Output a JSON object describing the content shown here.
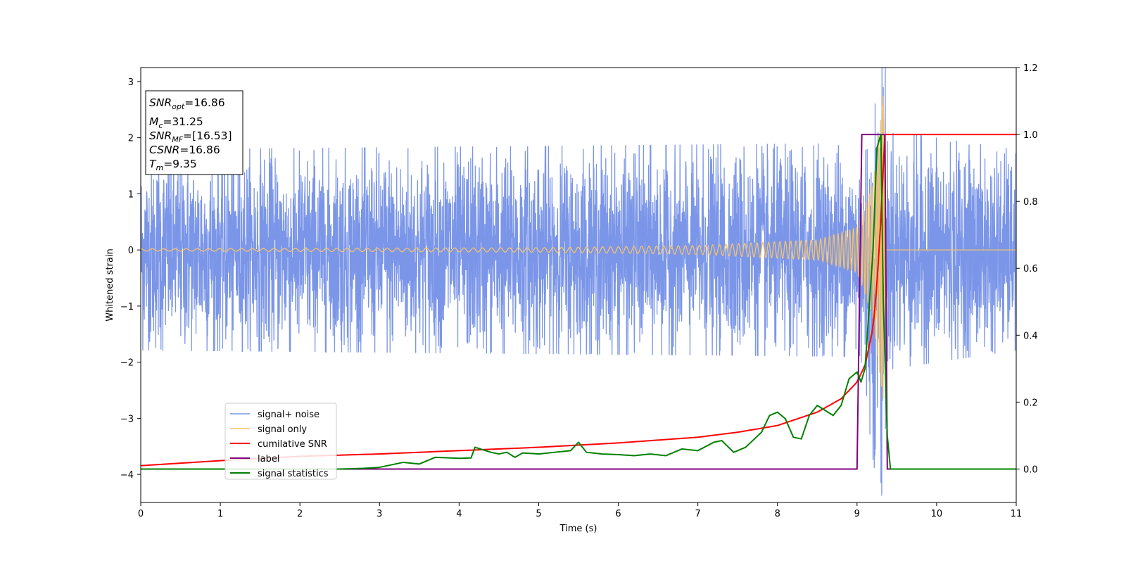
{
  "chart_data": {
    "type": "line",
    "title": "",
    "xlabel": "Time (s)",
    "ylabel": "Whitened strain",
    "xlim": [
      0,
      11
    ],
    "ylim": [
      -4.5,
      3.25
    ],
    "y2lim": [
      -0.1,
      1.2
    ],
    "grid": false,
    "legend_position": "lower-left",
    "x_ticks": [
      "0",
      "1",
      "2",
      "3",
      "4",
      "5",
      "6",
      "7",
      "8",
      "9",
      "10",
      "11"
    ],
    "y_ticks": [
      "3",
      "2",
      "1",
      "0",
      "−1",
      "−2",
      "−3",
      "−4"
    ],
    "y2_ticks": [
      "1.2",
      "1.0",
      "0.8",
      "0.6",
      "0.4",
      "0.2",
      "0.0"
    ],
    "info_box": {
      "lines": [
        {
          "base": "SNR",
          "sub": "opt",
          "value": "=16.86"
        },
        {
          "base": "M",
          "sub": "c",
          "value": "=31.25"
        },
        {
          "base": "SNR",
          "sub": "MF",
          "value": "=[16.53]"
        },
        {
          "base": "CSNR",
          "sub": "",
          "value": "=16.86"
        },
        {
          "base": "T",
          "sub": "m",
          "value": "=9.35"
        }
      ]
    },
    "series": [
      {
        "name": "signal+ noise",
        "color": "#7b96e8",
        "axis": "left",
        "description": "white-noise-like band roughly spanning -1.6 to 1.6, peaks to about 2.9 / -4.2 near t=9.3",
        "band_upper": [
          [
            0,
            1.5
          ],
          [
            9.0,
            1.6
          ],
          [
            9.2,
            2.2
          ],
          [
            9.3,
            2.9
          ],
          [
            9.4,
            1.8
          ],
          [
            11,
            1.5
          ]
        ],
        "band_lower": [
          [
            0,
            -1.6
          ],
          [
            9.0,
            -1.7
          ],
          [
            9.3,
            -4.15
          ],
          [
            9.4,
            -1.9
          ],
          [
            11,
            -1.6
          ]
        ]
      },
      {
        "name": "signal only",
        "color": "#f5c26b",
        "axis": "left",
        "description": "chirp with growing amplitude and frequency, peak about 2.75 at t=9.33, zero after merger",
        "amplitude_envelope": [
          [
            0,
            0.02
          ],
          [
            5,
            0.04
          ],
          [
            7,
            0.08
          ],
          [
            8.5,
            0.18
          ],
          [
            9.0,
            0.4
          ],
          [
            9.2,
            1.2
          ],
          [
            9.33,
            2.75
          ],
          [
            9.36,
            0
          ]
        ]
      },
      {
        "name": "cumilative SNR",
        "color": "#ff0000",
        "axis": "right",
        "points": [
          [
            0,
            0.01
          ],
          [
            1,
            0.025
          ],
          [
            2,
            0.038
          ],
          [
            3,
            0.045
          ],
          [
            4,
            0.055
          ],
          [
            5,
            0.065
          ],
          [
            6,
            0.078
          ],
          [
            7,
            0.095
          ],
          [
            7.5,
            0.11
          ],
          [
            8,
            0.13
          ],
          [
            8.5,
            0.17
          ],
          [
            8.8,
            0.21
          ],
          [
            9.0,
            0.26
          ],
          [
            9.1,
            0.31
          ],
          [
            9.2,
            0.42
          ],
          [
            9.25,
            0.55
          ],
          [
            9.3,
            0.75
          ],
          [
            9.33,
            0.9
          ],
          [
            9.35,
            1.0
          ],
          [
            11,
            1.0
          ]
        ]
      },
      {
        "name": "label",
        "color": "#800080",
        "axis": "right",
        "points": [
          [
            0,
            0
          ],
          [
            9.0,
            0
          ],
          [
            9.06,
            1.0
          ],
          [
            9.35,
            1.0
          ],
          [
            9.38,
            0
          ],
          [
            11,
            0
          ]
        ]
      },
      {
        "name": "signal statistics",
        "color": "#008000",
        "axis": "right",
        "points": [
          [
            0,
            0
          ],
          [
            2.5,
            0
          ],
          [
            2.8,
            0.002
          ],
          [
            3.0,
            0.005
          ],
          [
            3.3,
            0.02
          ],
          [
            3.5,
            0.015
          ],
          [
            3.7,
            0.035
          ],
          [
            4.0,
            0.032
          ],
          [
            4.15,
            0.033
          ],
          [
            4.2,
            0.065
          ],
          [
            4.4,
            0.05
          ],
          [
            4.5,
            0.045
          ],
          [
            4.6,
            0.05
          ],
          [
            4.7,
            0.035
          ],
          [
            4.8,
            0.048
          ],
          [
            5.0,
            0.045
          ],
          [
            5.2,
            0.05
          ],
          [
            5.4,
            0.055
          ],
          [
            5.5,
            0.08
          ],
          [
            5.6,
            0.05
          ],
          [
            5.8,
            0.045
          ],
          [
            6.0,
            0.043
          ],
          [
            6.2,
            0.04
          ],
          [
            6.4,
            0.045
          ],
          [
            6.6,
            0.04
          ],
          [
            6.8,
            0.06
          ],
          [
            7.0,
            0.055
          ],
          [
            7.2,
            0.08
          ],
          [
            7.3,
            0.085
          ],
          [
            7.45,
            0.05
          ],
          [
            7.6,
            0.065
          ],
          [
            7.8,
            0.11
          ],
          [
            7.9,
            0.16
          ],
          [
            8.0,
            0.17
          ],
          [
            8.1,
            0.15
          ],
          [
            8.2,
            0.095
          ],
          [
            8.3,
            0.09
          ],
          [
            8.4,
            0.16
          ],
          [
            8.5,
            0.19
          ],
          [
            8.7,
            0.16
          ],
          [
            8.8,
            0.19
          ],
          [
            8.9,
            0.27
          ],
          [
            9.0,
            0.29
          ],
          [
            9.05,
            0.26
          ],
          [
            9.1,
            0.3
          ],
          [
            9.2,
            0.65
          ],
          [
            9.25,
            0.96
          ],
          [
            9.3,
            1.0
          ],
          [
            9.33,
            0.5
          ],
          [
            9.38,
            0.1
          ],
          [
            9.42,
            0
          ],
          [
            11,
            0
          ]
        ]
      }
    ]
  }
}
